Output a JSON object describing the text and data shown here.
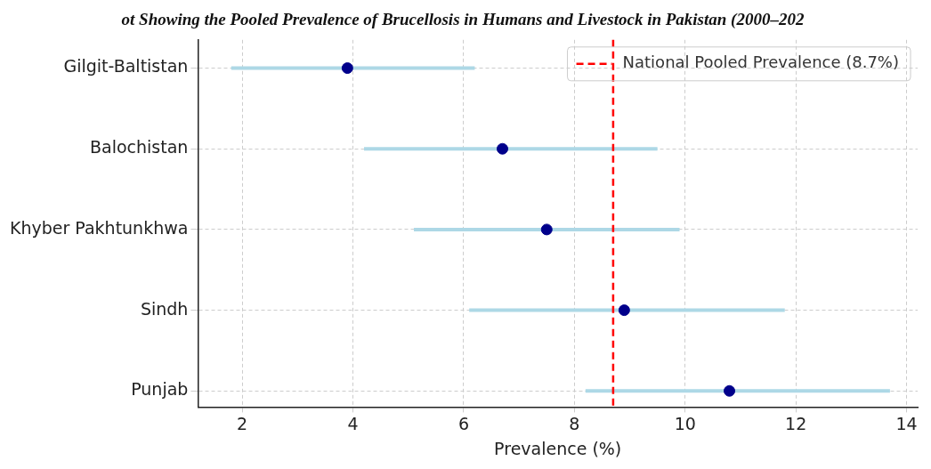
{
  "chart_data": {
    "type": "scatter",
    "title": "ot Showing the Pooled Prevalence of Brucellosis in Humans and Livestock in Pakistan (2000–202",
    "xlabel": "Prevalence (%)",
    "orientation": "horizontal",
    "categories": [
      "Gilgit-Baltistan",
      "Balochistan",
      "Khyber Pakhtunkhwa",
      "Sindh",
      "Punjab"
    ],
    "series": [
      {
        "color": "#00008b",
        "values": [
          3.9,
          6.7,
          7.5,
          8.9,
          10.8
        ],
        "errors": [
          [
            1.8,
            6.2
          ],
          [
            4.2,
            9.5
          ],
          [
            5.1,
            9.9
          ],
          [
            6.1,
            11.8
          ],
          [
            8.2,
            13.7
          ]
        ]
      }
    ],
    "ref_lines": [
      {
        "axis": "x",
        "value": 8.7,
        "label": "National Pooled Prevalence (8.7%)",
        "color": "#ff0000",
        "line_style": "dashed"
      }
    ],
    "xlim": [
      1.2,
      14.2
    ],
    "xticks": [
      2,
      4,
      6,
      8,
      10,
      12,
      14
    ],
    "grid": true,
    "legend": "top right",
    "marker": "circle"
  }
}
